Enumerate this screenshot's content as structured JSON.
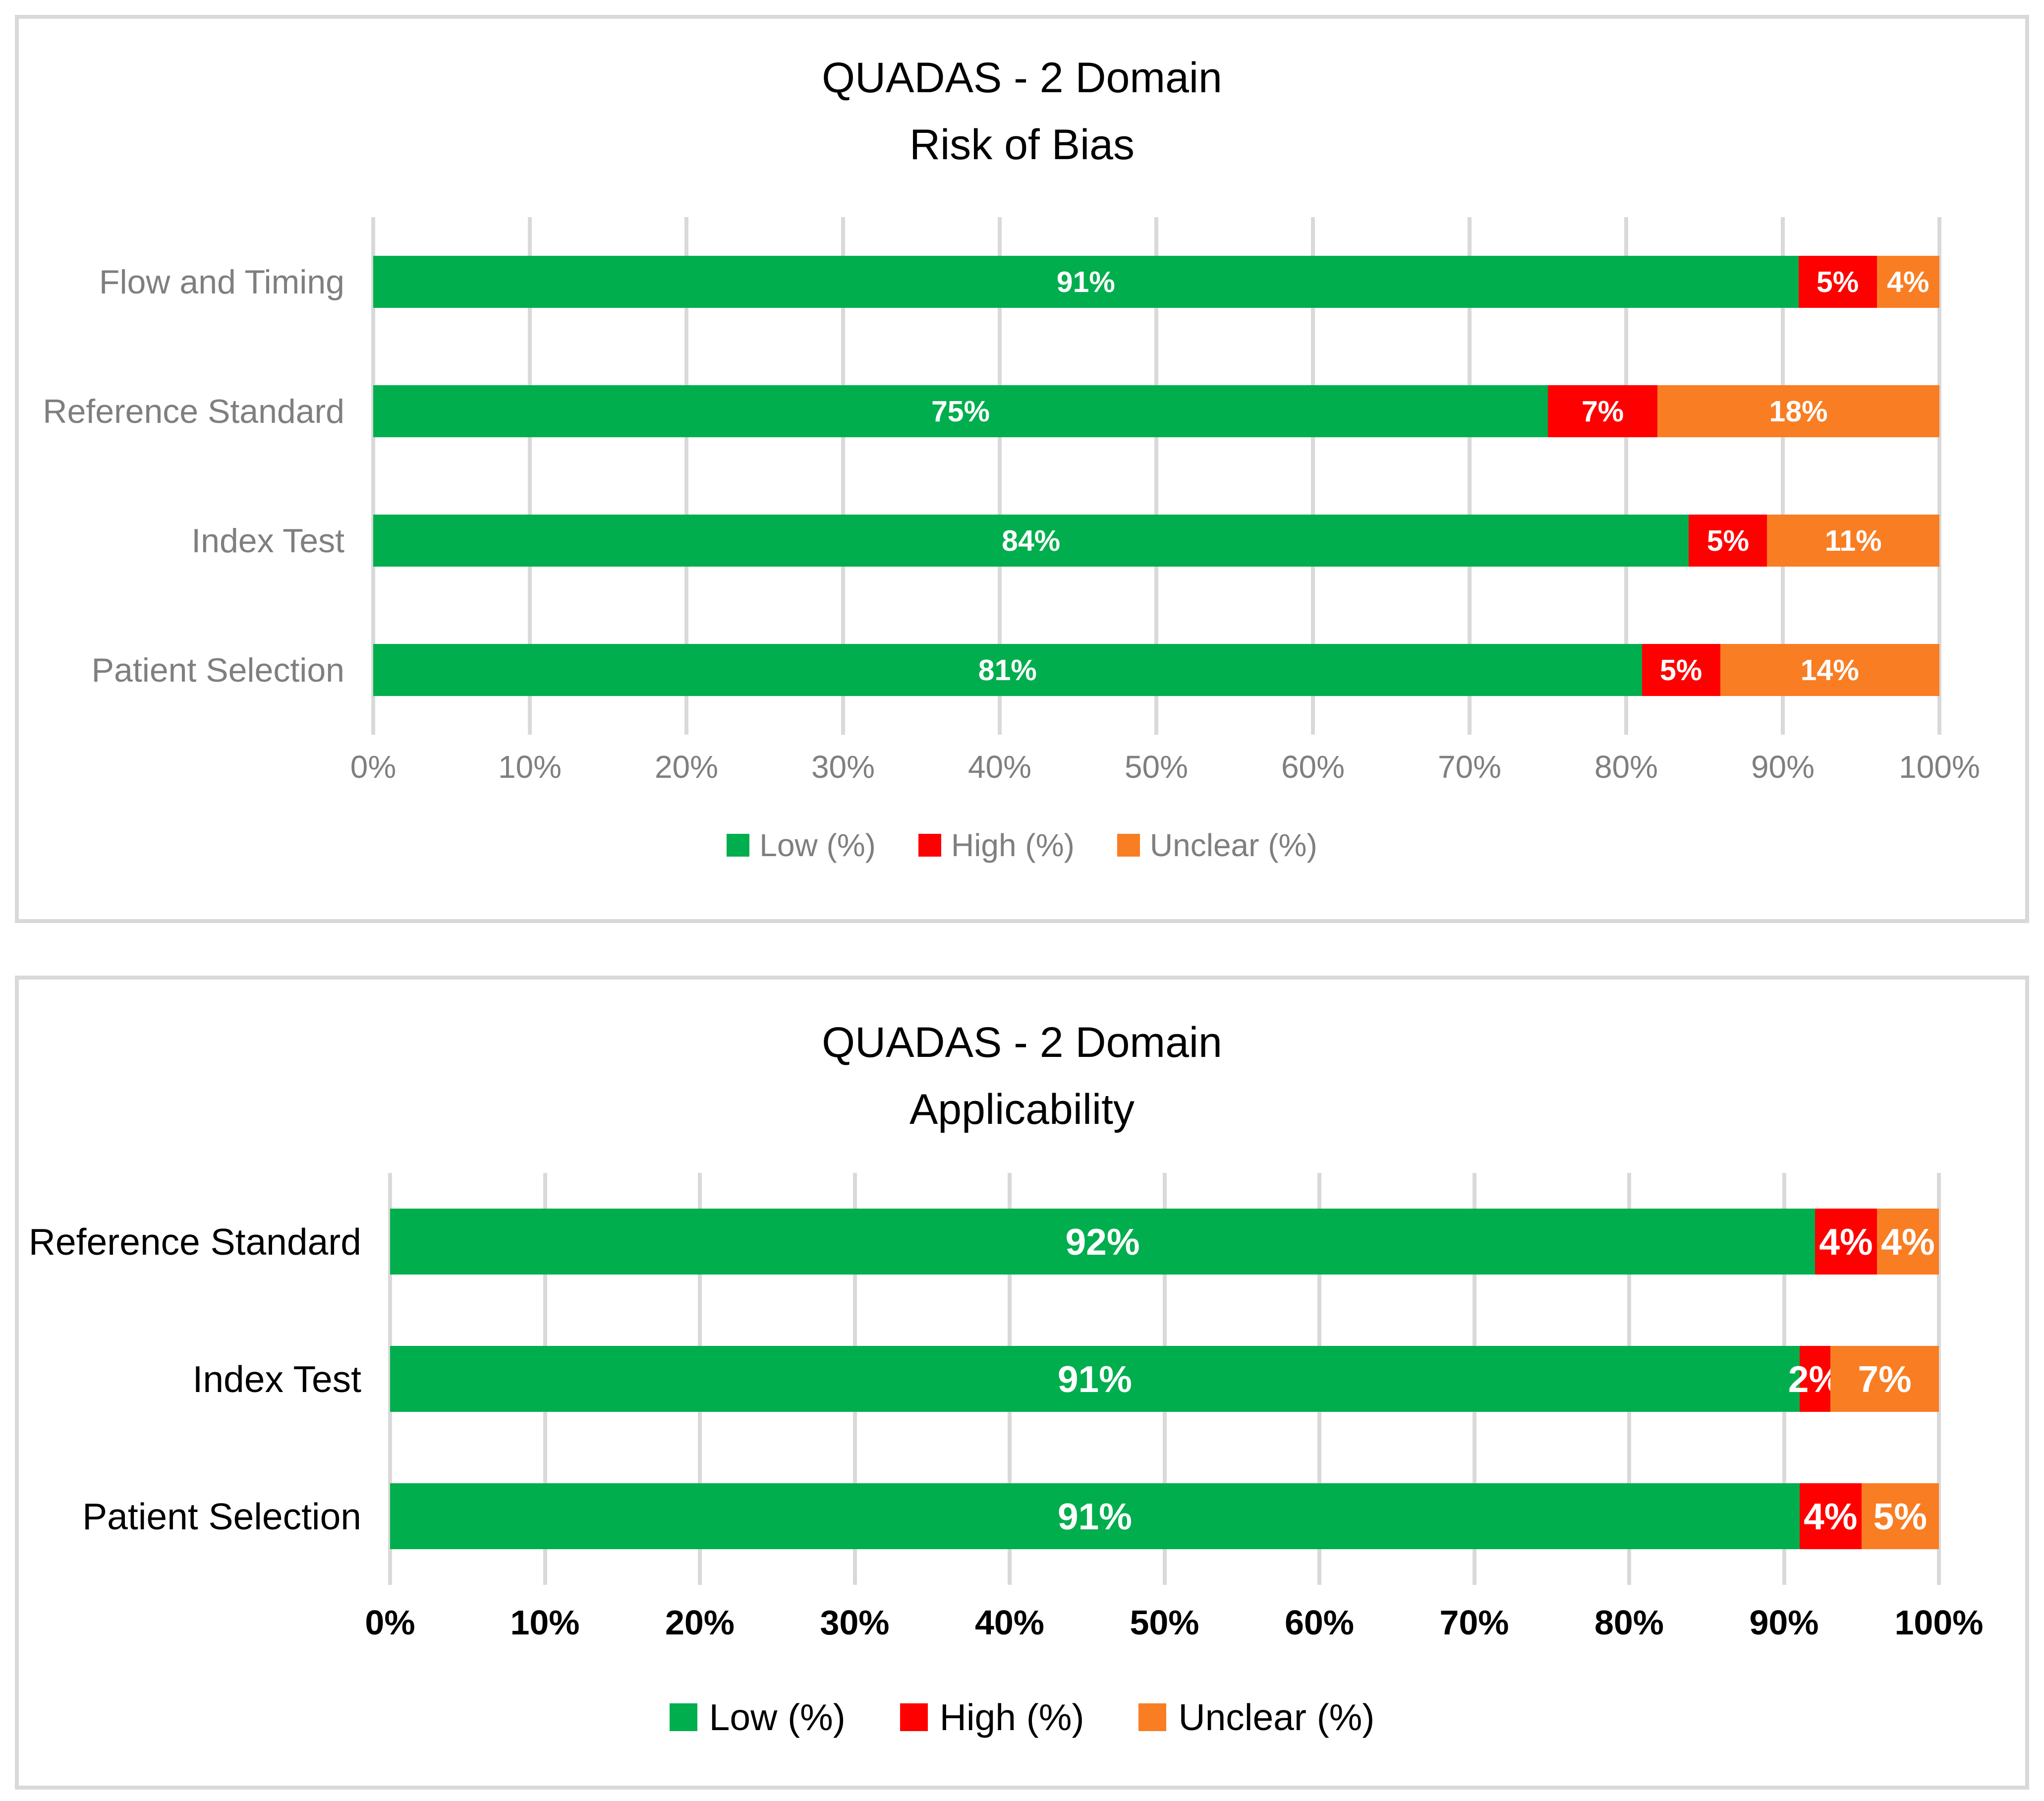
{
  "chart_data": [
    {
      "type": "bar",
      "orientation": "horizontal-stacked",
      "title_line1": "QUADAS - 2 Domain",
      "title_line2": "Risk of Bias",
      "categories": [
        "Flow and Timing",
        "Reference Standard",
        "Index Test",
        "Patient Selection"
      ],
      "series": [
        {
          "name": "Low (%)",
          "color": "#00AE4D",
          "values": [
            91,
            75,
            84,
            81
          ]
        },
        {
          "name": "High (%)",
          "color": "#FF0000",
          "values": [
            5,
            7,
            5,
            5
          ]
        },
        {
          "name": "Unclear (%)",
          "color": "#F97D23",
          "values": [
            4,
            18,
            11,
            14
          ]
        }
      ],
      "data_label_suffix": "%",
      "xlim": [
        0,
        100
      ],
      "x_ticks": [
        "0%",
        "10%",
        "20%",
        "30%",
        "40%",
        "50%",
        "60%",
        "70%",
        "80%",
        "90%",
        "100%"
      ],
      "grid": true,
      "legend_position": "bottom",
      "legend": [
        "Low (%)",
        "High (%)",
        "Unclear (%)"
      ]
    },
    {
      "type": "bar",
      "orientation": "horizontal-stacked",
      "title_line1": "QUADAS - 2 Domain",
      "title_line2": "Applicability",
      "categories": [
        "Reference Standard",
        "Index Test",
        "Patient Selection"
      ],
      "series": [
        {
          "name": "Low (%)",
          "color": "#00AE4D",
          "values": [
            92,
            91,
            91
          ]
        },
        {
          "name": "High (%)",
          "color": "#FF0000",
          "values": [
            4,
            2,
            4
          ]
        },
        {
          "name": "Unclear (%)",
          "color": "#F97D23",
          "values": [
            4,
            7,
            5
          ]
        }
      ],
      "data_label_suffix": "%",
      "xlim": [
        0,
        100
      ],
      "x_ticks": [
        "0%",
        "10%",
        "20%",
        "30%",
        "40%",
        "50%",
        "60%",
        "70%",
        "80%",
        "90%",
        "100%"
      ],
      "grid": true,
      "legend_position": "bottom",
      "legend": [
        "Low (%)",
        "High (%)",
        "Unclear (%)"
      ]
    }
  ],
  "colors": {
    "low": "#00AE4D",
    "high": "#FF0000",
    "unclear": "#F97D23",
    "gridline": "#D9D9D9",
    "panel_border": "#D9D9D9",
    "muted_text": "#7F7F7F",
    "text": "#000000",
    "data_label_text": "#FFFFFF"
  }
}
